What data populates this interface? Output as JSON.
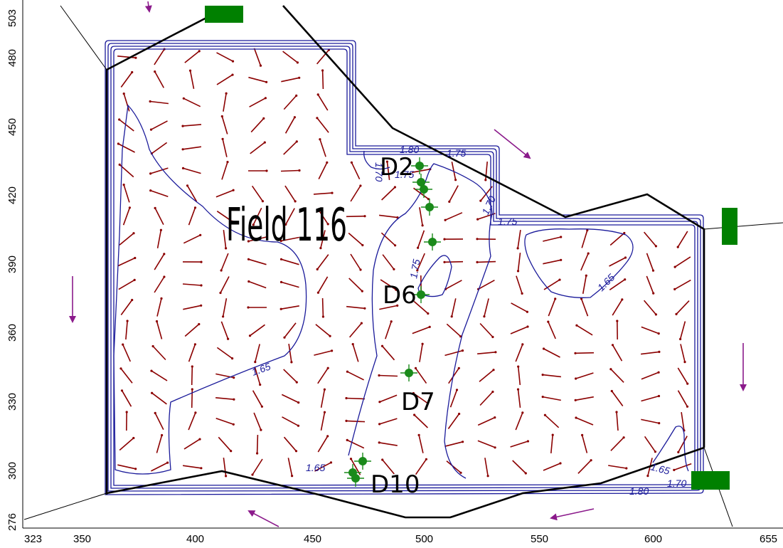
{
  "chart_data": {
    "type": "map",
    "title": "",
    "xlabel": "",
    "ylabel": "",
    "x_ticks": [
      "323",
      "350",
      "400",
      "450",
      "500",
      "550",
      "600",
      "655"
    ],
    "y_ticks": [
      "503",
      "480",
      "450",
      "420",
      "390",
      "360",
      "330",
      "300",
      "276"
    ],
    "field_label": "Field 116",
    "well_labels": [
      "D2",
      "D6",
      "D7",
      "D10"
    ],
    "contour_labels": [
      "1.80",
      "1.75",
      "1.70",
      "1.75",
      "1.70",
      "1.75",
      "1.75",
      "1.65",
      "1.65",
      "1.65",
      "1.65",
      "1.80",
      "1.70"
    ],
    "colors": {
      "contour": "#1a1a9a",
      "vector": "#8b0000",
      "boundary": "#000000",
      "well": "#1a8a1a",
      "flow_arrow": "#8b1a8b",
      "marker": "#008000"
    }
  }
}
